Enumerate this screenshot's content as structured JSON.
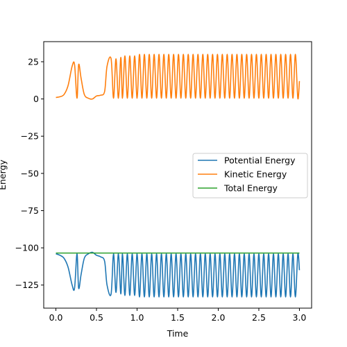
{
  "chart_data": {
    "type": "line",
    "xlabel": "Time",
    "ylabel": "Energy",
    "xlim": [
      -0.15,
      3.15
    ],
    "ylim": [
      -140.5,
      38.5
    ],
    "xticks": [
      0.0,
      0.5,
      1.0,
      1.5,
      2.0,
      2.5,
      3.0
    ],
    "xtick_labels": [
      "0.0",
      "0.5",
      "1.0",
      "1.5",
      "2.0",
      "2.5",
      "3.0"
    ],
    "yticks": [
      25,
      0,
      -25,
      -50,
      -75,
      -100,
      -125
    ],
    "ytick_labels": [
      "25",
      "0",
      "−25",
      "−50",
      "−75",
      "−100",
      "−125"
    ],
    "grid": false,
    "legend_position": "center-right",
    "total_energy": -103.5,
    "series": [
      {
        "name": "Potential Energy",
        "color": "#1f77b4",
        "x": [
          0.0,
          0.05,
          0.1,
          0.15,
          0.2,
          0.23,
          0.26,
          0.28,
          0.31,
          0.35,
          0.4,
          0.45,
          0.5,
          0.55,
          0.6,
          0.63,
          0.68,
          0.71,
          0.74,
          0.77,
          0.8,
          0.82,
          0.85,
          0.88,
          0.91,
          0.94,
          0.97,
          1.0,
          1.03,
          1.06,
          1.09,
          1.12,
          1.15,
          1.18,
          1.21,
          1.24,
          1.27,
          1.3,
          1.33,
          1.36,
          1.39,
          1.42,
          1.45,
          1.48,
          1.51,
          1.54,
          1.57,
          1.6,
          1.63,
          1.66,
          1.69,
          1.72,
          1.75,
          1.78,
          1.81,
          1.84,
          1.87,
          1.9,
          1.93,
          1.96,
          1.99,
          2.02,
          2.05,
          2.08,
          2.11,
          2.14,
          2.17,
          2.2,
          2.23,
          2.26,
          2.29,
          2.32,
          2.35,
          2.38,
          2.41,
          2.44,
          2.47,
          2.5,
          2.53,
          2.56,
          2.59,
          2.62,
          2.65,
          2.68,
          2.71,
          2.74,
          2.77,
          2.8,
          2.83,
          2.86,
          2.89,
          2.92,
          2.95,
          2.98,
          3.0
        ],
        "values": [
          -104,
          -105,
          -107,
          -113,
          -125,
          -127,
          -104,
          -127,
          -118,
          -107,
          -104,
          -103,
          -105,
          -106,
          -109,
          -125,
          -131,
          -104,
          -130,
          -104,
          -131,
          -104,
          -132,
          -104,
          -132,
          -104,
          -132,
          -104,
          -133,
          -104,
          -133,
          -104,
          -133,
          -104,
          -133,
          -104,
          -133,
          -104,
          -133,
          -104,
          -133,
          -104,
          -133,
          -104,
          -133,
          -104,
          -133,
          -104,
          -133,
          -104,
          -133,
          -104,
          -133,
          -104,
          -133,
          -104,
          -133,
          -104,
          -133,
          -104,
          -133,
          -104,
          -133,
          -104,
          -133,
          -104,
          -133,
          -104,
          -133,
          -104,
          -133,
          -104,
          -133,
          -104,
          -133,
          -104,
          -133,
          -104,
          -133,
          -104,
          -133,
          -104,
          -133,
          -104,
          -133,
          -104,
          -133,
          -104,
          -133,
          -104,
          -133,
          -104,
          -133,
          -104,
          -115
        ]
      },
      {
        "name": "Kinetic Energy",
        "color": "#ff7f0e",
        "x": [
          0.0,
          0.05,
          0.1,
          0.15,
          0.2,
          0.23,
          0.26,
          0.28,
          0.31,
          0.35,
          0.4,
          0.45,
          0.5,
          0.55,
          0.6,
          0.63,
          0.68,
          0.71,
          0.74,
          0.77,
          0.8,
          0.82,
          0.85,
          0.88,
          0.91,
          0.94,
          0.97,
          1.0,
          1.03,
          1.06,
          1.09,
          1.12,
          1.15,
          1.18,
          1.21,
          1.24,
          1.27,
          1.3,
          1.33,
          1.36,
          1.39,
          1.42,
          1.45,
          1.48,
          1.51,
          1.54,
          1.57,
          1.6,
          1.63,
          1.66,
          1.69,
          1.72,
          1.75,
          1.78,
          1.81,
          1.84,
          1.87,
          1.9,
          1.93,
          1.96,
          1.99,
          2.02,
          2.05,
          2.08,
          2.11,
          2.14,
          2.17,
          2.2,
          2.23,
          2.26,
          2.29,
          2.32,
          2.35,
          2.38,
          2.41,
          2.44,
          2.47,
          2.5,
          2.53,
          2.56,
          2.59,
          2.62,
          2.65,
          2.68,
          2.71,
          2.74,
          2.77,
          2.8,
          2.83,
          2.86,
          2.89,
          2.92,
          2.95,
          2.98,
          3.0
        ],
        "values": [
          1,
          1.5,
          3,
          9,
          22,
          23,
          0.5,
          23,
          14,
          3,
          0.5,
          0,
          2,
          2.5,
          5,
          22,
          27,
          0.5,
          27,
          0.5,
          28,
          0.5,
          29,
          0.5,
          29,
          0.5,
          29,
          0.5,
          30,
          0.5,
          30,
          0.5,
          30,
          0.5,
          30,
          0.5,
          30,
          0.5,
          30,
          0.5,
          30,
          0.5,
          30,
          0.5,
          30,
          0.5,
          30,
          0.5,
          30,
          0.5,
          30,
          0.5,
          30,
          0.5,
          30,
          0.5,
          30,
          0.5,
          30,
          0.5,
          30,
          0.5,
          30,
          0.5,
          30,
          0.5,
          30,
          0.5,
          30,
          0.5,
          30,
          0.5,
          30,
          0.5,
          30,
          0.5,
          30,
          0.5,
          30,
          0.5,
          30,
          0.5,
          30,
          0.5,
          30,
          0.5,
          30,
          0.5,
          30,
          0.5,
          30,
          0.5,
          30,
          0.5,
          12
        ]
      },
      {
        "name": "Total Energy",
        "color": "#2ca02c",
        "x": [
          0.0,
          3.0
        ],
        "values": [
          -103.5,
          -103.5
        ]
      }
    ]
  }
}
